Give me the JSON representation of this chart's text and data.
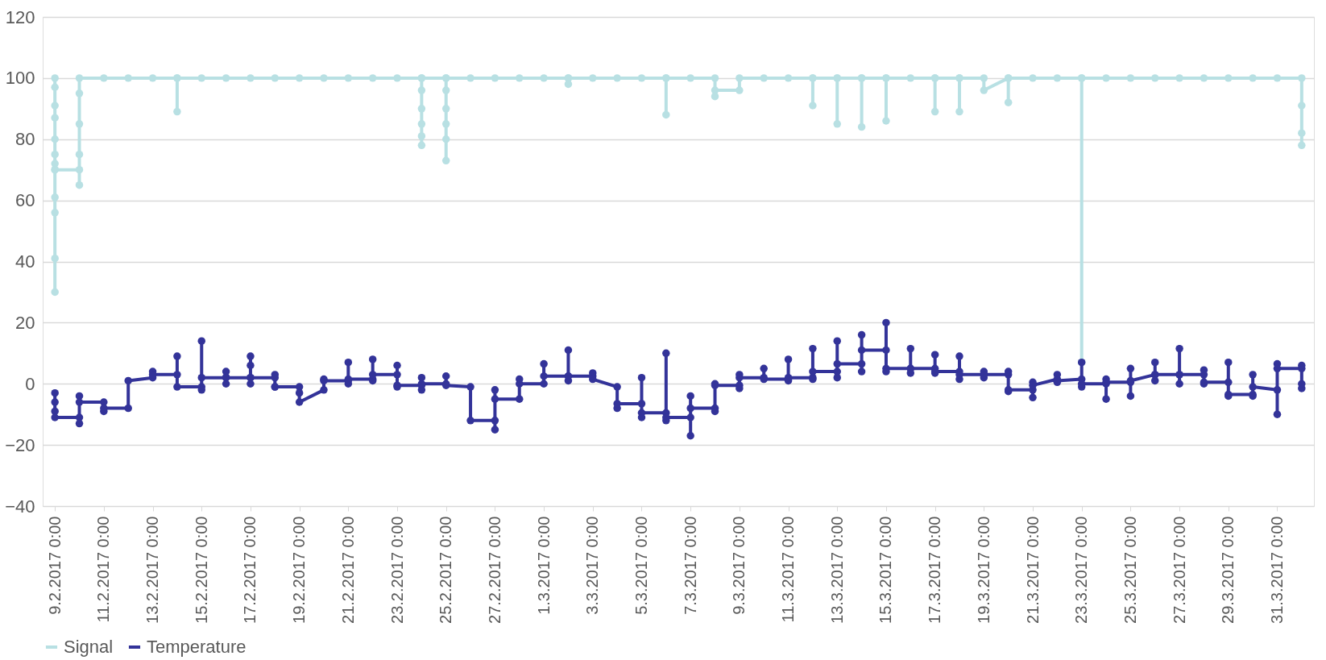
{
  "chart_data": {
    "type": "line",
    "xlim": [
      "2017-02-08T12:00",
      "2017-04-01T12:00"
    ],
    "xticks": [
      {
        "value": "2017-02-09",
        "label": "9.2.2017 0:00"
      },
      {
        "value": "2017-02-11",
        "label": "11.2.2017 0:00"
      },
      {
        "value": "2017-02-13",
        "label": "13.2.2017 0:00"
      },
      {
        "value": "2017-02-15",
        "label": "15.2.2017 0:00"
      },
      {
        "value": "2017-02-17",
        "label": "17.2.2017 0:00"
      },
      {
        "value": "2017-02-19",
        "label": "19.2.2017 0:00"
      },
      {
        "value": "2017-02-21",
        "label": "21.2.2017 0:00"
      },
      {
        "value": "2017-02-23",
        "label": "23.2.2017 0:00"
      },
      {
        "value": "2017-02-25",
        "label": "25.2.2017 0:00"
      },
      {
        "value": "2017-02-27",
        "label": "27.2.2017 0:00"
      },
      {
        "value": "2017-03-01",
        "label": "1.3.2017 0:00"
      },
      {
        "value": "2017-03-03",
        "label": "3.3.2017 0:00"
      },
      {
        "value": "2017-03-05",
        "label": "5.3.2017 0:00"
      },
      {
        "value": "2017-03-07",
        "label": "7.3.2017 0:00"
      },
      {
        "value": "2017-03-09",
        "label": "9.3.2017 0:00"
      },
      {
        "value": "2017-03-11",
        "label": "11.3.2017 0:00"
      },
      {
        "value": "2017-03-13",
        "label": "13.3.2017 0:00"
      },
      {
        "value": "2017-03-15",
        "label": "15.3.2017 0:00"
      },
      {
        "value": "2017-03-17",
        "label": "17.3.2017 0:00"
      },
      {
        "value": "2017-03-19",
        "label": "19.3.2017 0:00"
      },
      {
        "value": "2017-03-21",
        "label": "21.3.2017 0:00"
      },
      {
        "value": "2017-03-23",
        "label": "23.3.2017 0:00"
      },
      {
        "value": "2017-03-25",
        "label": "25.3.2017 0:00"
      },
      {
        "value": "2017-03-27",
        "label": "27.3.2017 0:00"
      },
      {
        "value": "2017-03-29",
        "label": "29.3.2017 0:00"
      },
      {
        "value": "2017-03-31",
        "label": "31.3.2017 0:00"
      }
    ],
    "ylim": [
      -40,
      120
    ],
    "yticks": [
      -40,
      -20,
      0,
      20,
      40,
      60,
      80,
      100,
      120
    ],
    "grid": "y",
    "legend": "bottom",
    "marker": "circle",
    "line_style": "solid",
    "series": [
      {
        "name": "Signal",
        "color": "#b8e0e3",
        "x": [
          "2017-02-09",
          "2017-02-09",
          "2017-02-09",
          "2017-02-09",
          "2017-02-09",
          "2017-02-09",
          "2017-02-09",
          "2017-02-09",
          "2017-02-09",
          "2017-02-09",
          "2017-02-09",
          "2017-02-09",
          "2017-02-09",
          "2017-02-10",
          "2017-02-10",
          "2017-02-10",
          "2017-02-10",
          "2017-02-10",
          "2017-02-10",
          "2017-02-11",
          "2017-02-12",
          "2017-02-13",
          "2017-02-14",
          "2017-02-14",
          "2017-02-14",
          "2017-02-15",
          "2017-02-16",
          "2017-02-17",
          "2017-02-18",
          "2017-02-19",
          "2017-02-20",
          "2017-02-21",
          "2017-02-22",
          "2017-02-23",
          "2017-02-24",
          "2017-02-24",
          "2017-02-24",
          "2017-02-24",
          "2017-02-24",
          "2017-02-24",
          "2017-02-24",
          "2017-02-25",
          "2017-02-25",
          "2017-02-25",
          "2017-02-25",
          "2017-02-25",
          "2017-02-25",
          "2017-02-25",
          "2017-02-26",
          "2017-02-27",
          "2017-02-28",
          "2017-03-01",
          "2017-03-02",
          "2017-03-02",
          "2017-03-02",
          "2017-03-03",
          "2017-03-04",
          "2017-03-05",
          "2017-03-06",
          "2017-03-06",
          "2017-03-06",
          "2017-03-07",
          "2017-03-08",
          "2017-03-08",
          "2017-03-08",
          "2017-03-09",
          "2017-03-09",
          "2017-03-10",
          "2017-03-11",
          "2017-03-12",
          "2017-03-12",
          "2017-03-12",
          "2017-03-13",
          "2017-03-13",
          "2017-03-13",
          "2017-03-14",
          "2017-03-14",
          "2017-03-14",
          "2017-03-15",
          "2017-03-15",
          "2017-03-15",
          "2017-03-16",
          "2017-03-17",
          "2017-03-17",
          "2017-03-17",
          "2017-03-18",
          "2017-03-18",
          "2017-03-18",
          "2017-03-19",
          "2017-03-19",
          "2017-03-20",
          "2017-03-20",
          "2017-03-20",
          "2017-03-21",
          "2017-03-22",
          "2017-03-23",
          "2017-03-23",
          "2017-03-23",
          "2017-03-24",
          "2017-03-25",
          "2017-03-26",
          "2017-03-27",
          "2017-03-28",
          "2017-03-29",
          "2017-03-30",
          "2017-03-31",
          "2017-04-01",
          "2017-04-01",
          "2017-04-01",
          "2017-04-01"
        ],
        "values": [
          100,
          97,
          91,
          87,
          80,
          75,
          72,
          70,
          61,
          56,
          41,
          30,
          70,
          70,
          65,
          75,
          85,
          95,
          100,
          100,
          100,
          100,
          100,
          89,
          100,
          100,
          100,
          100,
          100,
          100,
          100,
          100,
          100,
          100,
          100,
          96,
          90,
          85,
          81,
          78,
          100,
          100,
          96,
          90,
          85,
          80,
          73,
          100,
          100,
          100,
          100,
          100,
          100,
          98,
          100,
          100,
          100,
          100,
          100,
          88,
          100,
          100,
          100,
          94,
          96,
          96,
          100,
          100,
          100,
          100,
          91,
          100,
          100,
          85,
          100,
          100,
          84,
          100,
          100,
          86,
          100,
          100,
          100,
          89,
          100,
          100,
          89,
          100,
          100,
          96,
          100,
          92,
          100,
          100,
          100,
          100,
          7,
          100,
          100,
          100,
          100,
          100,
          100,
          100,
          100,
          100,
          100,
          91,
          82,
          78
        ]
      },
      {
        "name": "Temperature",
        "color": "#333399",
        "x": [
          "2017-02-09",
          "2017-02-09",
          "2017-02-09",
          "2017-02-09",
          "2017-02-10",
          "2017-02-10",
          "2017-02-10",
          "2017-02-10",
          "2017-02-11",
          "2017-02-11",
          "2017-02-11",
          "2017-02-12",
          "2017-02-12",
          "2017-02-13",
          "2017-02-13",
          "2017-02-13",
          "2017-02-14",
          "2017-02-14",
          "2017-02-14",
          "2017-02-15",
          "2017-02-15",
          "2017-02-15",
          "2017-02-15",
          "2017-02-16",
          "2017-02-16",
          "2017-02-16",
          "2017-02-16",
          "2017-02-17",
          "2017-02-17",
          "2017-02-17",
          "2017-02-17",
          "2017-02-17",
          "2017-02-18",
          "2017-02-18",
          "2017-02-18",
          "2017-02-18",
          "2017-02-19",
          "2017-02-19",
          "2017-02-19",
          "2017-02-20",
          "2017-02-20",
          "2017-02-20",
          "2017-02-21",
          "2017-02-21",
          "2017-02-21",
          "2017-02-21",
          "2017-02-22",
          "2017-02-22",
          "2017-02-22",
          "2017-02-22",
          "2017-02-23",
          "2017-02-23",
          "2017-02-23",
          "2017-02-23",
          "2017-02-24",
          "2017-02-24",
          "2017-02-24",
          "2017-02-24",
          "2017-02-25",
          "2017-02-25",
          "2017-02-25",
          "2017-02-26",
          "2017-02-26",
          "2017-02-27",
          "2017-02-27",
          "2017-02-27",
          "2017-02-27",
          "2017-02-28",
          "2017-02-28",
          "2017-02-28",
          "2017-03-01",
          "2017-03-01",
          "2017-03-01",
          "2017-03-02",
          "2017-03-02",
          "2017-03-02",
          "2017-03-02",
          "2017-03-03",
          "2017-03-03",
          "2017-03-03",
          "2017-03-04",
          "2017-03-04",
          "2017-03-04",
          "2017-03-05",
          "2017-03-05",
          "2017-03-05",
          "2017-03-05",
          "2017-03-06",
          "2017-03-06",
          "2017-03-06",
          "2017-03-06",
          "2017-03-07",
          "2017-03-07",
          "2017-03-07",
          "2017-03-07",
          "2017-03-08",
          "2017-03-08",
          "2017-03-08",
          "2017-03-08",
          "2017-03-09",
          "2017-03-09",
          "2017-03-09",
          "2017-03-09",
          "2017-03-10",
          "2017-03-10",
          "2017-03-10",
          "2017-03-11",
          "2017-03-11",
          "2017-03-11",
          "2017-03-11",
          "2017-03-12",
          "2017-03-12",
          "2017-03-12",
          "2017-03-12",
          "2017-03-13",
          "2017-03-13",
          "2017-03-13",
          "2017-03-13",
          "2017-03-14",
          "2017-03-14",
          "2017-03-14",
          "2017-03-14",
          "2017-03-15",
          "2017-03-15",
          "2017-03-15",
          "2017-03-15",
          "2017-03-16",
          "2017-03-16",
          "2017-03-16",
          "2017-03-16",
          "2017-03-17",
          "2017-03-17",
          "2017-03-17",
          "2017-03-17",
          "2017-03-18",
          "2017-03-18",
          "2017-03-18",
          "2017-03-18",
          "2017-03-19",
          "2017-03-19",
          "2017-03-19",
          "2017-03-19",
          "2017-03-20",
          "2017-03-20",
          "2017-03-20",
          "2017-03-20",
          "2017-03-21",
          "2017-03-21",
          "2017-03-21",
          "2017-03-21",
          "2017-03-22",
          "2017-03-22",
          "2017-03-22",
          "2017-03-22",
          "2017-03-23",
          "2017-03-23",
          "2017-03-23",
          "2017-03-23",
          "2017-03-24",
          "2017-03-24",
          "2017-03-24",
          "2017-03-24",
          "2017-03-25",
          "2017-03-25",
          "2017-03-25",
          "2017-03-25",
          "2017-03-26",
          "2017-03-26",
          "2017-03-26",
          "2017-03-26",
          "2017-03-27",
          "2017-03-27",
          "2017-03-27",
          "2017-03-27",
          "2017-03-28",
          "2017-03-28",
          "2017-03-28",
          "2017-03-28",
          "2017-03-29",
          "2017-03-29",
          "2017-03-29",
          "2017-03-29",
          "2017-03-30",
          "2017-03-30",
          "2017-03-30",
          "2017-03-30",
          "2017-03-31",
          "2017-03-31",
          "2017-03-31",
          "2017-03-31",
          "2017-04-01",
          "2017-04-01",
          "2017-04-01",
          "2017-04-01"
        ],
        "values": [
          -3,
          -6,
          -9,
          -11,
          -11,
          -13,
          -4,
          -6,
          -6,
          -9,
          -8,
          -8,
          1,
          2,
          4,
          3,
          3,
          9,
          -1,
          -1,
          14,
          -2,
          2,
          2,
          4,
          0,
          2,
          2,
          9,
          6,
          0,
          2,
          2,
          3,
          -1,
          -1,
          -1,
          -3,
          -6,
          -2,
          1.5,
          1,
          1,
          7,
          0,
          1.5,
          1.5,
          8,
          1,
          3,
          3,
          6,
          -1,
          -0.5,
          -0.5,
          2,
          -2,
          0,
          0,
          2.5,
          -0.5,
          -1,
          -12,
          -12,
          -15,
          -2,
          -5,
          -5,
          1.5,
          0,
          0,
          6.5,
          2.5,
          2.5,
          11,
          1,
          2.5,
          2.5,
          3.5,
          1.5,
          -1,
          -8,
          -6.5,
          -6.5,
          2,
          -11,
          -9.5,
          -9.5,
          10,
          -12,
          -11,
          -11,
          -17,
          -4,
          -8,
          -8,
          -9,
          0,
          -0.5,
          -0.5,
          -1.5,
          3,
          2,
          2,
          5,
          1.5,
          1.5,
          8,
          1,
          2,
          2,
          11.5,
          1.5,
          4,
          4,
          14,
          2,
          6.5,
          6.5,
          16,
          4,
          11,
          11,
          20,
          4,
          5,
          5,
          11.5,
          3.5,
          5,
          5,
          9.5,
          3.5,
          4,
          4,
          9,
          1.5,
          3,
          3,
          4,
          2,
          3,
          3,
          4,
          -2.5,
          -2,
          -2,
          0.5,
          -4.5,
          -0.5,
          1.5,
          3,
          0.5,
          1,
          1.5,
          7,
          -1,
          0,
          0,
          1.5,
          -5,
          0.5,
          0.5,
          5,
          -4,
          1,
          3,
          7,
          1,
          3,
          3,
          11.5,
          0,
          3,
          3,
          4.5,
          0,
          0.5,
          0.5,
          7,
          -4,
          -3.5,
          -3.5,
          3,
          -4,
          -1,
          -2,
          -10,
          6.5,
          5,
          5,
          6,
          -1.5,
          0
        ]
      }
    ]
  }
}
